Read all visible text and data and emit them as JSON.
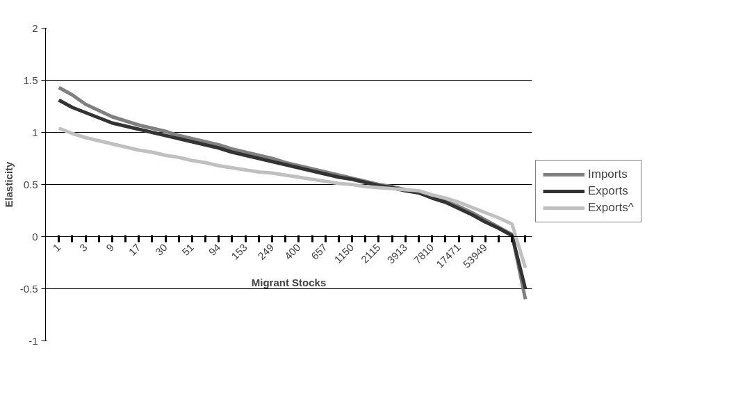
{
  "chart_data": {
    "type": "line",
    "xlabel": "Migrant Stocks",
    "ylabel": "Elasticity",
    "categories": [
      "1",
      null,
      "3",
      null,
      "9",
      null,
      "17",
      null,
      "30",
      null,
      "51",
      null,
      "94",
      null,
      "153",
      null,
      "249",
      null,
      "400",
      null,
      "657",
      null,
      "1150",
      null,
      "2115",
      null,
      "3913",
      null,
      "7810",
      null,
      "17471",
      null,
      "53949",
      null,
      null,
      null
    ],
    "series": [
      {
        "name": "Imports",
        "color": "#808080",
        "values": [
          1.43,
          1.36,
          1.27,
          1.21,
          1.15,
          1.11,
          1.07,
          1.04,
          1.01,
          0.97,
          0.94,
          0.91,
          0.88,
          0.84,
          0.81,
          0.78,
          0.75,
          0.71,
          0.68,
          0.65,
          0.62,
          0.59,
          0.56,
          0.53,
          0.5,
          0.48,
          0.45,
          0.42,
          0.38,
          0.34,
          0.29,
          0.23,
          0.16,
          0.09,
          0.02,
          -0.6
        ]
      },
      {
        "name": "Exports",
        "color": "#333333",
        "values": [
          1.31,
          1.24,
          1.19,
          1.14,
          1.09,
          1.06,
          1.03,
          1.0,
          0.97,
          0.94,
          0.91,
          0.88,
          0.85,
          0.81,
          0.78,
          0.75,
          0.72,
          0.69,
          0.66,
          0.63,
          0.6,
          0.57,
          0.55,
          0.52,
          0.49,
          0.47,
          0.44,
          0.42,
          0.37,
          0.33,
          0.27,
          0.21,
          0.14,
          0.08,
          0.01,
          -0.5
        ]
      },
      {
        "name": "Exports^",
        "color": "#c0c0c0",
        "values": [
          1.04,
          0.99,
          0.95,
          0.92,
          0.89,
          0.86,
          0.83,
          0.81,
          0.78,
          0.76,
          0.73,
          0.71,
          0.68,
          0.66,
          0.64,
          0.62,
          0.61,
          0.59,
          0.57,
          0.55,
          0.53,
          0.51,
          0.5,
          0.48,
          0.47,
          0.46,
          0.45,
          0.44,
          0.4,
          0.37,
          0.33,
          0.28,
          0.23,
          0.18,
          0.12,
          -0.3
        ]
      }
    ],
    "ylim": [
      -1,
      2
    ],
    "yticks": [
      -1,
      -0.5,
      0,
      0.5,
      1,
      1.5,
      2
    ],
    "grid": "y",
    "legend": "right",
    "marker": "none",
    "line_style": "solid"
  }
}
